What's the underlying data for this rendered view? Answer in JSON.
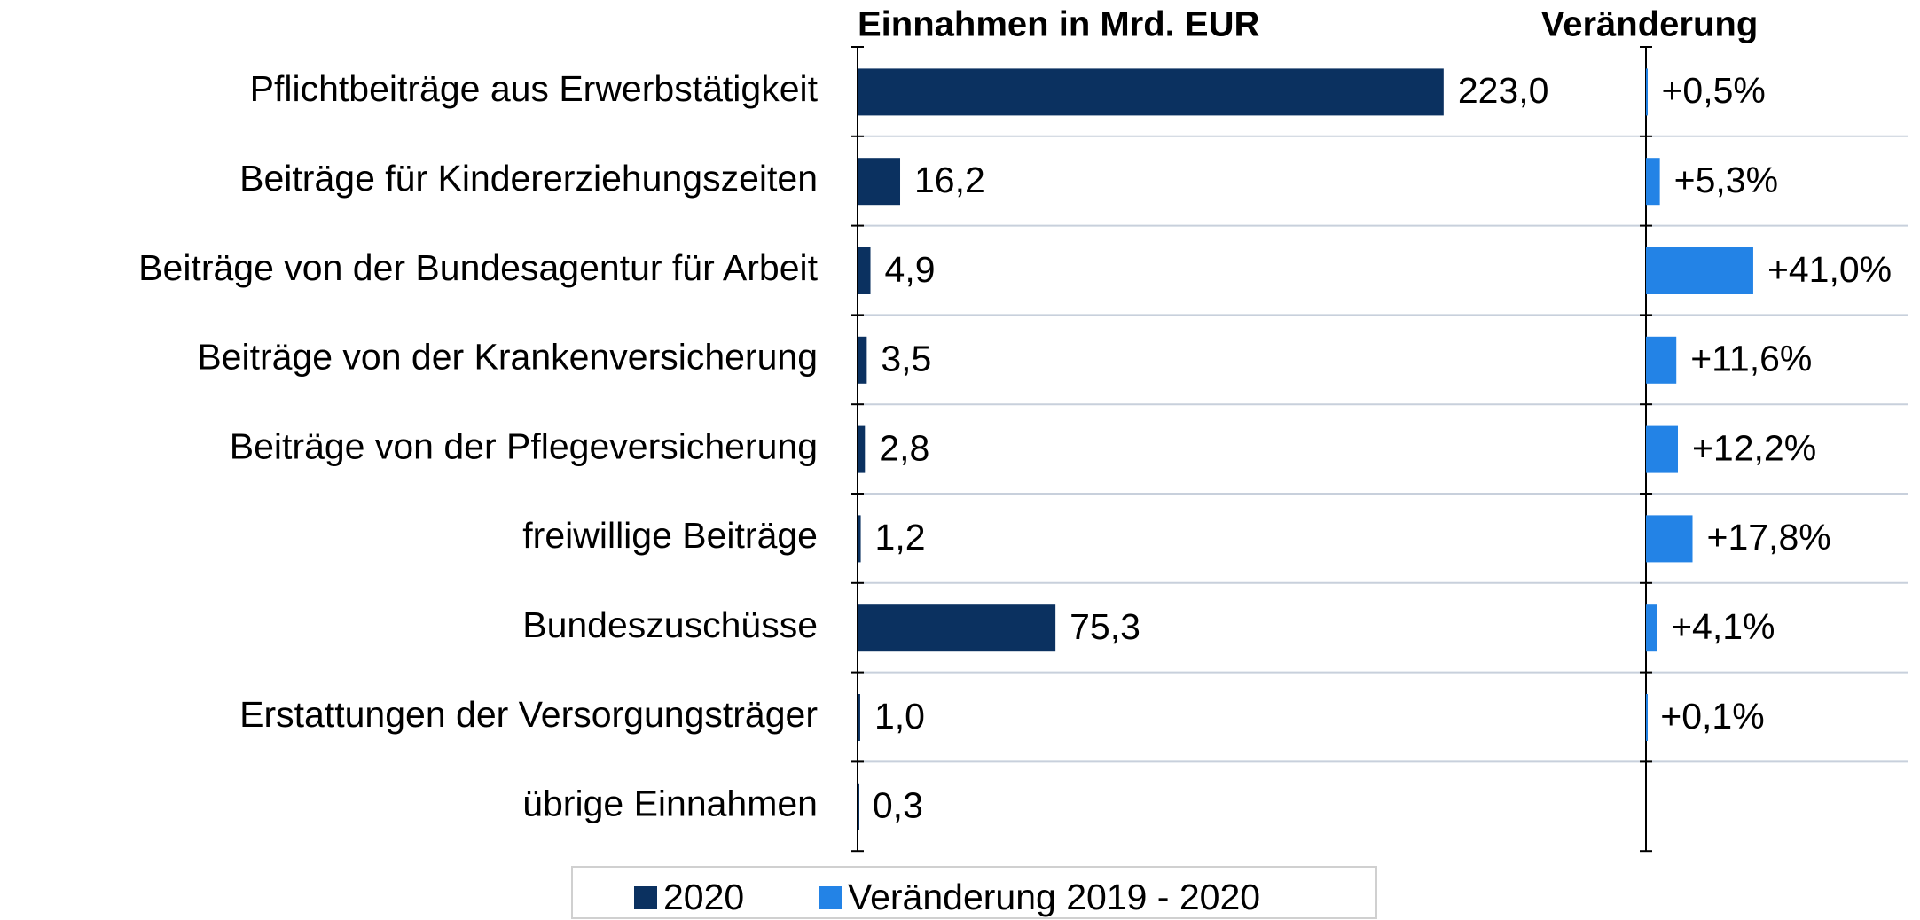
{
  "chart_data": {
    "type": "bar",
    "orientation": "horizontal",
    "categories": [
      "Pflichtbeiträge aus Erwerbstätigkeit",
      "Beiträge für Kindererziehungszeiten",
      "Beiträge von der Bundesagentur für Arbeit",
      "Beiträge von der Krankenversicherung",
      "Beiträge von der Pflegeversicherung",
      "freiwillige Beiträge",
      "Bundeszuschüsse",
      "Erstattungen der Versorgungsträger",
      "übrige Einnahmen"
    ],
    "series": [
      {
        "name": "2020",
        "title": "Einnahmen in Mrd. EUR",
        "color": "#0b3160",
        "values": [
          223.0,
          16.2,
          4.9,
          3.5,
          2.8,
          1.2,
          75.3,
          1.0,
          0.3
        ],
        "value_labels": [
          "223,0",
          "16,2",
          "4,9",
          "3,5",
          "2,8",
          "1,2",
          "75,3",
          "1,0",
          "0,3"
        ],
        "xlim": [
          0,
          300
        ]
      },
      {
        "name": "Veränderung 2019 - 2020",
        "title": "Veränderung",
        "color": "#2383e6",
        "values": [
          0.5,
          5.3,
          41.0,
          11.6,
          12.2,
          17.8,
          4.1,
          0.1,
          null
        ],
        "value_labels": [
          "+0,5%",
          "+5,3%",
          "+41,0%",
          "+11,6%",
          "+12,2%",
          "+17,8%",
          "+4,1%",
          "+0,1%",
          null
        ],
        "xlim": [
          0,
          100
        ]
      }
    ]
  }
}
